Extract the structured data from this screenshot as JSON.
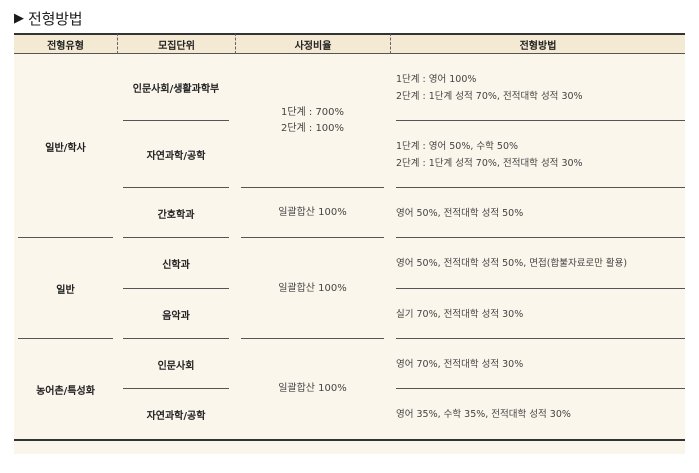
{
  "title": "전형방법",
  "table": {
    "headers": [
      "전형유형",
      "모집단위",
      "사정비율",
      "전형방법"
    ],
    "groups": [
      {
        "type": "일반/학사",
        "ratio_main": [
          "1단계 : 700%",
          "2단계 : 100%"
        ],
        "rows": [
          {
            "unit": "인문사회/생활과학부",
            "method": [
              "1단계 : 영어 100%",
              "2단계 : 1단계 성적 70%, 전적대학 성적 30%"
            ]
          },
          {
            "unit": "자연과학/공학",
            "method": [
              "1단계 : 영어 50%, 수학 50%",
              "2단계 : 1단계 성적 70%, 전적대학 성적 30%"
            ]
          },
          {
            "unit": "간호학과",
            "ratio": "일괄합산 100%",
            "method": [
              "영어 50%, 전적대학 성적 50%"
            ]
          }
        ]
      },
      {
        "type": "일반",
        "ratio": "일괄합산 100%",
        "rows": [
          {
            "unit": "신학과",
            "method": [
              "영어 50%, 전적대학 성적 50%, 면접(합불자료로만 활용)"
            ]
          },
          {
            "unit": "음악과",
            "method": [
              "실기 70%, 전적대학 성적 30%"
            ]
          }
        ]
      },
      {
        "type": "농어촌/특성화",
        "ratio": "일괄합산 100%",
        "rows": [
          {
            "unit": "인문사회",
            "method": [
              "영어 70%, 전적대학 성적 30%"
            ]
          },
          {
            "unit": "자연과학/공학",
            "method": [
              "영어 35%, 수학 35%, 전적대학 성적 30%"
            ]
          }
        ]
      }
    ]
  }
}
